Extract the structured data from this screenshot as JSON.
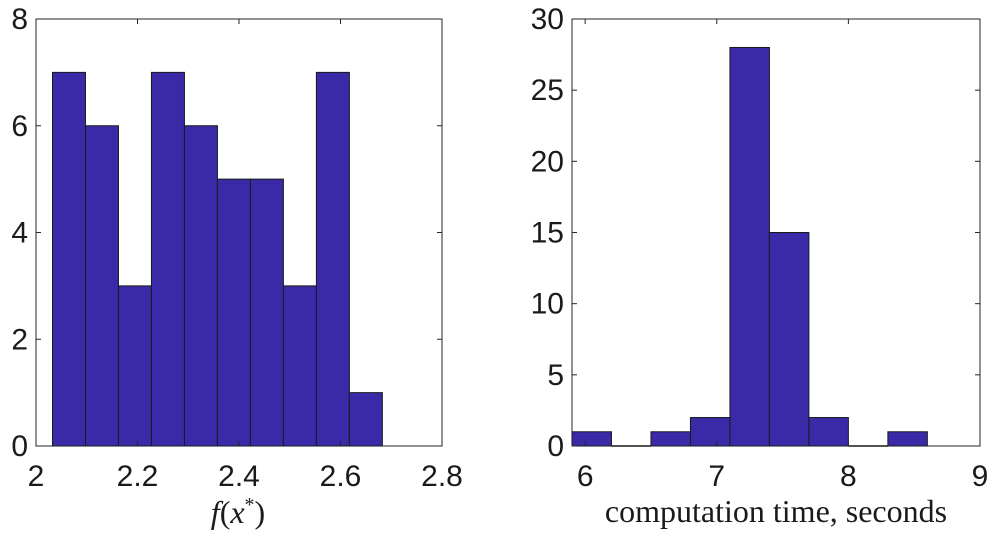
{
  "chart_data": [
    {
      "type": "bar",
      "subtype": "histogram",
      "title": "",
      "xlabel": "f(x*)",
      "ylabel": "",
      "xlim": [
        2,
        2.8
      ],
      "ylim": [
        0,
        8
      ],
      "xticks": [
        "2",
        "2.2",
        "2.4",
        "2.6",
        "2.8"
      ],
      "yticks": [
        "0",
        "2",
        "4",
        "6",
        "8"
      ],
      "bin_edges": [
        2.0325,
        2.0975,
        2.1625,
        2.2275,
        2.2925,
        2.3575,
        2.4225,
        2.4875,
        2.5525,
        2.6175,
        2.6825
      ],
      "counts": [
        7,
        6,
        3,
        7,
        6,
        5,
        5,
        3,
        7,
        1
      ],
      "bar_color": "#3a2aa8"
    },
    {
      "type": "bar",
      "subtype": "histogram",
      "title": "",
      "xlabel": "computation time, seconds",
      "ylabel": "",
      "xlim": [
        5.9,
        9
      ],
      "ylim": [
        0,
        30
      ],
      "xticks": [
        "6",
        "7",
        "8",
        "9"
      ],
      "yticks": [
        "0",
        "5",
        "10",
        "15",
        "20",
        "25",
        "30"
      ],
      "bin_edges": [
        5.9,
        6.2,
        6.5,
        6.8,
        7.1,
        7.4,
        7.7,
        8.0,
        8.3,
        8.6
      ],
      "counts": [
        1,
        0,
        1,
        2,
        28,
        15,
        2,
        0,
        1
      ],
      "bar_color": "#3a2aa8"
    }
  ]
}
